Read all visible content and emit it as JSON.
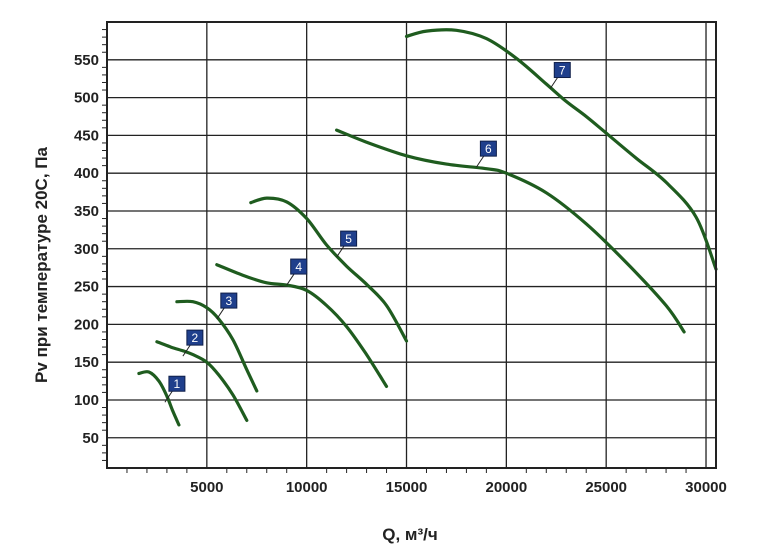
{
  "chart_data": {
    "type": "line",
    "xlabel": "Q, м³/ч",
    "ylabel": "Pv при температуре 20С,  Па",
    "xlim": [
      0,
      30500
    ],
    "ylim": [
      10,
      600
    ],
    "x_ticks": [
      "5000",
      "10000",
      "15000",
      "20000",
      "25000",
      "30000"
    ],
    "y_ticks": [
      "50",
      "100",
      "150",
      "200",
      "250",
      "300",
      "350",
      "400",
      "450",
      "500",
      "550"
    ],
    "grid": true,
    "series": [
      {
        "name": "1",
        "x": [
          1600,
          2100,
          2600,
          3000,
          3300,
          3600
        ],
        "y": [
          135,
          137,
          125,
          105,
          85,
          67
        ],
        "label_at": [
          2900,
          97
        ]
      },
      {
        "name": "2",
        "x": [
          2500,
          3200,
          3800,
          4300,
          5000,
          5600,
          6300,
          7000
        ],
        "y": [
          177,
          170,
          165,
          160,
          150,
          133,
          107,
          73
        ],
        "label_at": [
          3800,
          158
        ]
      },
      {
        "name": "3",
        "x": [
          3500,
          4300,
          5000,
          5600,
          6300,
          7000,
          7500
        ],
        "y": [
          230,
          230,
          222,
          207,
          180,
          140,
          112
        ],
        "label_at": [
          5500,
          207
        ]
      },
      {
        "name": "4",
        "x": [
          5500,
          6800,
          8000,
          9000,
          10000,
          11000,
          12000,
          13000,
          14000
        ],
        "y": [
          279,
          265,
          255,
          252,
          245,
          225,
          197,
          160,
          118
        ],
        "label_at": [
          9000,
          252
        ]
      },
      {
        "name": "5",
        "x": [
          7200,
          8000,
          9000,
          10000,
          11000,
          12000,
          13000,
          14000,
          15000
        ],
        "y": [
          361,
          367,
          362,
          340,
          305,
          277,
          253,
          225,
          178
        ],
        "label_at": [
          11500,
          289
        ]
      },
      {
        "name": "6",
        "x": [
          11500,
          13000,
          15000,
          17000,
          19000,
          20000,
          22000,
          24000,
          26000,
          28000,
          28900
        ],
        "y": [
          457,
          441,
          423,
          412,
          406,
          400,
          374,
          333,
          282,
          225,
          190
        ],
        "label_at": [
          18500,
          408
        ]
      },
      {
        "name": "7",
        "x": [
          15000,
          16000,
          17500,
          19000,
          20500,
          22000,
          23000,
          24000,
          25000,
          26500,
          28000,
          29500,
          30500
        ],
        "y": [
          581,
          588,
          589,
          578,
          552,
          518,
          495,
          475,
          453,
          420,
          388,
          342,
          273
        ],
        "label_at": [
          22200,
          512
        ]
      }
    ],
    "line_color": "#1f5c1f",
    "label_box_color": "#1f3f8c"
  }
}
